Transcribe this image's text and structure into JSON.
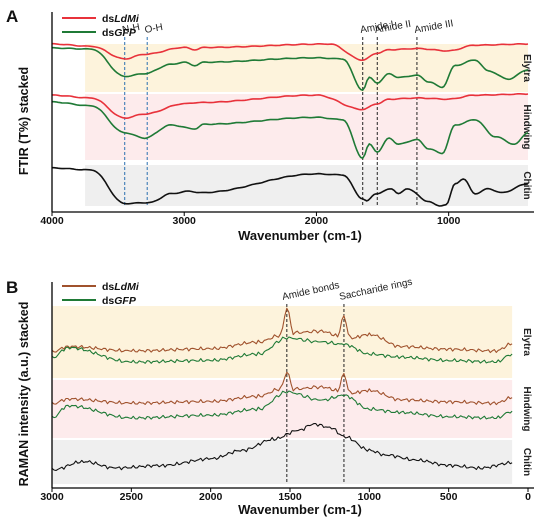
{
  "figure": {
    "panels": [
      {
        "panel_label": "A",
        "legend": [
          {
            "prefix": "ds",
            "name": "LdMi",
            "color": "#e8323b"
          },
          {
            "prefix": "ds",
            "name": "GFP",
            "color": "#1f7a36"
          }
        ]
      },
      {
        "panel_label": "B",
        "legend": [
          {
            "prefix": "ds",
            "name": "LdMi",
            "color": "#a0522d"
          },
          {
            "prefix": "ds",
            "name": "GFP",
            "color": "#1f7a36"
          }
        ]
      }
    ]
  },
  "chart_data": [
    {
      "type": "line",
      "panel": "A",
      "xlabel": "Wavenumber (cm-1)",
      "ylabel": "FTIR (T%) stacked",
      "xlim": [
        4000,
        400
      ],
      "x_reversed": true,
      "x_ticks": [
        4000,
        3000,
        2000,
        1000
      ],
      "legend_position": "top-left",
      "groups": [
        {
          "name": "Elytra",
          "band_color": "#fdf3dc",
          "band_x": [
            3750,
            400
          ]
        },
        {
          "name": "Hindwing",
          "band_color": "#fdebec",
          "band_x": [
            3750,
            400
          ]
        },
        {
          "name": "Chitin",
          "band_color": "#efefef",
          "band_x": [
            3750,
            400
          ]
        }
      ],
      "annotations": [
        {
          "label": "N-H",
          "x": 3450,
          "color": "#2a6fb0"
        },
        {
          "label": "O-H",
          "x": 3280,
          "color": "#2a6fb0"
        },
        {
          "label": "Amide I",
          "x": 1650,
          "color": "#222222"
        },
        {
          "label": "Amide II",
          "x": 1540,
          "color": "#222222"
        },
        {
          "label": "Amide III",
          "x": 1240,
          "color": "#222222"
        }
      ],
      "series": [
        {
          "name": "dsLdMi",
          "group": "Elytra",
          "color": "#e8323b",
          "points": [
            [
              4000,
              98
            ],
            [
              3700,
              96
            ],
            [
              3450,
              85
            ],
            [
              3300,
              89
            ],
            [
              3000,
              95
            ],
            [
              2920,
              93
            ],
            [
              2850,
              95
            ],
            [
              1900,
              98
            ],
            [
              1650,
              84
            ],
            [
              1540,
              90
            ],
            [
              1450,
              93
            ],
            [
              1240,
              94
            ],
            [
              1000,
              92
            ],
            [
              800,
              97
            ],
            [
              400,
              98
            ]
          ]
        },
        {
          "name": "dsGFP",
          "group": "Elytra",
          "color": "#1f7a36",
          "points": [
            [
              4000,
              92
            ],
            [
              3700,
              90
            ],
            [
              3450,
              40
            ],
            [
              3300,
              45
            ],
            [
              3100,
              62
            ],
            [
              3000,
              66
            ],
            [
              2920,
              60
            ],
            [
              2850,
              66
            ],
            [
              2000,
              74
            ],
            [
              1800,
              72
            ],
            [
              1650,
              15
            ],
            [
              1600,
              38
            ],
            [
              1540,
              28
            ],
            [
              1450,
              45
            ],
            [
              1380,
              38
            ],
            [
              1240,
              42
            ],
            [
              1150,
              30
            ],
            [
              1050,
              20
            ],
            [
              950,
              60
            ],
            [
              800,
              70
            ],
            [
              700,
              50
            ],
            [
              550,
              35
            ],
            [
              400,
              52
            ]
          ]
        },
        {
          "name": "dsLdMi",
          "group": "Hindwing",
          "color": "#e8323b",
          "points": [
            [
              4000,
              95
            ],
            [
              3700,
              90
            ],
            [
              3450,
              55
            ],
            [
              3300,
              62
            ],
            [
              3000,
              80
            ],
            [
              2900,
              82
            ],
            [
              2000,
              95
            ],
            [
              1650,
              70
            ],
            [
              1540,
              80
            ],
            [
              1450,
              88
            ],
            [
              1240,
              90
            ],
            [
              1000,
              88
            ],
            [
              800,
              95
            ],
            [
              400,
              97
            ]
          ]
        },
        {
          "name": "dsGFP",
          "group": "Hindwing",
          "color": "#1f7a36",
          "points": [
            [
              4000,
              85
            ],
            [
              3700,
              80
            ],
            [
              3450,
              45
            ],
            [
              3300,
              38
            ],
            [
              3100,
              55
            ],
            [
              2920,
              50
            ],
            [
              2850,
              56
            ],
            [
              2000,
              65
            ],
            [
              1800,
              62
            ],
            [
              1650,
              12
            ],
            [
              1600,
              30
            ],
            [
              1540,
              20
            ],
            [
              1450,
              38
            ],
            [
              1380,
              30
            ],
            [
              1240,
              36
            ],
            [
              1150,
              24
            ],
            [
              1050,
              18
            ],
            [
              950,
              55
            ],
            [
              800,
              62
            ],
            [
              650,
              40
            ],
            [
              500,
              30
            ],
            [
              400,
              45
            ]
          ]
        },
        {
          "name": "Chitin",
          "group": "Chitin",
          "color": "#111111",
          "points": [
            [
              4000,
              92
            ],
            [
              3700,
              88
            ],
            [
              3450,
              20
            ],
            [
              3260,
              22
            ],
            [
              3100,
              40
            ],
            [
              2960,
              45
            ],
            [
              2880,
              42
            ],
            [
              2000,
              80
            ],
            [
              1800,
              78
            ],
            [
              1650,
              30
            ],
            [
              1620,
              25
            ],
            [
              1550,
              40
            ],
            [
              1430,
              50
            ],
            [
              1380,
              40
            ],
            [
              1310,
              50
            ],
            [
              1160,
              25
            ],
            [
              1070,
              15
            ],
            [
              1020,
              18
            ],
            [
              950,
              60
            ],
            [
              890,
              70
            ],
            [
              800,
              40
            ],
            [
              700,
              50
            ],
            [
              600,
              42
            ],
            [
              400,
              60
            ]
          ]
        }
      ]
    },
    {
      "type": "line",
      "panel": "B",
      "xlabel": "Wavenumber (cm-1)",
      "ylabel": "RAMAN intensity (a.u.) stacked",
      "xlim": [
        3000,
        0
      ],
      "x_reversed": true,
      "x_ticks": [
        3000,
        2500,
        2000,
        1500,
        1000,
        500,
        0
      ],
      "legend_position": "top-left",
      "groups": [
        {
          "name": "Elytra",
          "band_color": "#fdf3dc",
          "band_x": [
            3000,
            100
          ]
        },
        {
          "name": "Hindwing",
          "band_color": "#fdebec",
          "band_x": [
            3000,
            100
          ]
        },
        {
          "name": "Chitin",
          "band_color": "#efefef",
          "band_x": [
            3000,
            100
          ]
        }
      ],
      "annotations": [
        {
          "label": "Amide bonds",
          "x": 1520,
          "color": "#222222"
        },
        {
          "label": "Saccharide rings",
          "x": 1160,
          "color": "#222222"
        }
      ],
      "series": [
        {
          "name": "dsLdMi",
          "group": "Elytra",
          "color": "#a0522d",
          "points": [
            [
              3000,
              20
            ],
            [
              2900,
              30
            ],
            [
              2500,
              22
            ],
            [
              2000,
              26
            ],
            [
              1700,
              38
            ],
            [
              1560,
              50
            ],
            [
              1520,
              100
            ],
            [
              1480,
              55
            ],
            [
              1300,
              58
            ],
            [
              1200,
              50
            ],
            [
              1160,
              85
            ],
            [
              1120,
              45
            ],
            [
              1000,
              52
            ],
            [
              800,
              30
            ],
            [
              500,
              25
            ],
            [
              200,
              22
            ],
            [
              100,
              35
            ]
          ]
        },
        {
          "name": "dsGFP",
          "group": "Elytra",
          "color": "#1f7a36",
          "points": [
            [
              3000,
              25
            ],
            [
              2900,
              38
            ],
            [
              2500,
              20
            ],
            [
              2000,
              22
            ],
            [
              1700,
              30
            ],
            [
              1520,
              50
            ],
            [
              1300,
              45
            ],
            [
              1160,
              42
            ],
            [
              1000,
              30
            ],
            [
              800,
              26
            ],
            [
              500,
              22
            ],
            [
              200,
              20
            ],
            [
              100,
              30
            ]
          ]
        },
        {
          "name": "dsLdMi",
          "group": "Hindwing",
          "color": "#a0522d",
          "points": [
            [
              3000,
              20
            ],
            [
              2900,
              32
            ],
            [
              2500,
              22
            ],
            [
              2000,
              26
            ],
            [
              1700,
              38
            ],
            [
              1560,
              55
            ],
            [
              1520,
              95
            ],
            [
              1480,
              55
            ],
            [
              1300,
              60
            ],
            [
              1200,
              52
            ],
            [
              1160,
              90
            ],
            [
              1120,
              45
            ],
            [
              1000,
              52
            ],
            [
              800,
              30
            ],
            [
              500,
              25
            ],
            [
              200,
              22
            ],
            [
              100,
              35
            ]
          ]
        },
        {
          "name": "dsGFP",
          "group": "Hindwing",
          "color": "#1f7a36",
          "points": [
            [
              3000,
              22
            ],
            [
              2900,
              40
            ],
            [
              2500,
              22
            ],
            [
              2000,
              26
            ],
            [
              1700,
              35
            ],
            [
              1520,
              60
            ],
            [
              1300,
              48
            ],
            [
              1160,
              55
            ],
            [
              1000,
              35
            ],
            [
              800,
              30
            ],
            [
              500,
              24
            ],
            [
              200,
              22
            ],
            [
              100,
              32
            ]
          ]
        },
        {
          "name": "Chitin",
          "group": "Chitin",
          "color": "#111111",
          "points": [
            [
              3000,
              15
            ],
            [
              2800,
              28
            ],
            [
              2600,
              18
            ],
            [
              2300,
              22
            ],
            [
              2000,
              32
            ],
            [
              1800,
              45
            ],
            [
              1600,
              62
            ],
            [
              1450,
              75
            ],
            [
              1350,
              85
            ],
            [
              1250,
              80
            ],
            [
              1150,
              65
            ],
            [
              1000,
              45
            ],
            [
              900,
              38
            ],
            [
              700,
              30
            ],
            [
              500,
              22
            ],
            [
              300,
              18
            ],
            [
              100,
              26
            ]
          ]
        }
      ]
    }
  ]
}
